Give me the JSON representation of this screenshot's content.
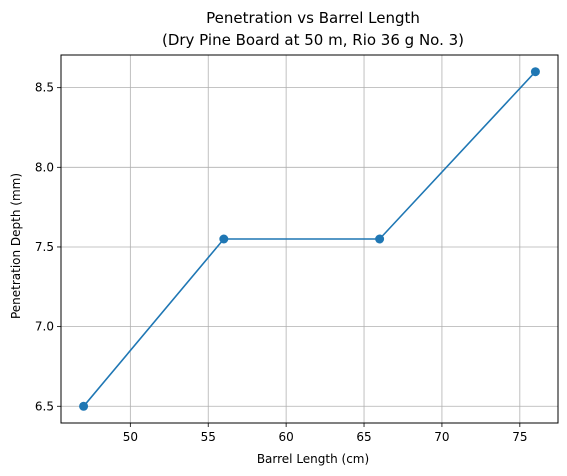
{
  "chart_data": {
    "type": "line",
    "title": "Penetration vs Barrel Length",
    "subtitle": "(Dry Pine Board at 50 m, Rio 36 g No. 3)",
    "xlabel": "Barrel Length (cm)",
    "ylabel": "Penetration Depth (mm)",
    "x": [
      47,
      56,
      66,
      76
    ],
    "series": [
      {
        "values": [
          6.5,
          7.55,
          7.55,
          8.6
        ],
        "color": "#1f77b4",
        "marker": "circle"
      }
    ],
    "xlim": [
      45.55,
      77.45
    ],
    "ylim": [
      6.395,
      8.705
    ],
    "xticks": [
      50,
      55,
      60,
      65,
      70,
      75
    ],
    "xtick_labels": [
      "50",
      "55",
      "60",
      "65",
      "70",
      "75"
    ],
    "yticks": [
      6.5,
      7.0,
      7.5,
      8.0,
      8.5
    ],
    "ytick_labels": [
      "6.5",
      "7.0",
      "7.5",
      "8.0",
      "8.5"
    ],
    "grid": true
  }
}
